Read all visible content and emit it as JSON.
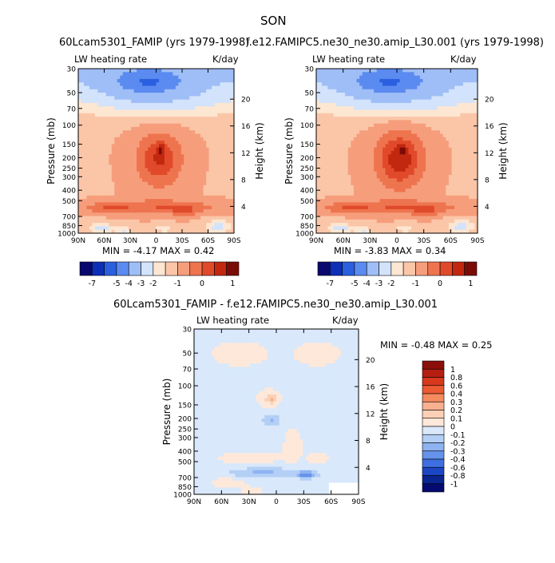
{
  "figure_title": "SON",
  "panels": [
    {
      "title": "60Lcam5301_FAMIP (yrs 1979-1998)",
      "left_label": "LW heating rate",
      "right_label": "K/day",
      "ylabel_left": "Pressure (mb)",
      "ylabel_right": "Height (km)",
      "stats": "MIN =   -4.17   MAX =    0.42"
    },
    {
      "title": "f.e12.FAMIPC5.ne30_ne30.amip_L30.001 (yrs 1979-1998)",
      "left_label": "LW heating rate",
      "right_label": "K/day",
      "ylabel_left": "Pressure (mb)",
      "ylabel_right": "Height (km)",
      "stats": "MIN =   -3.83   MAX =    0.34"
    },
    {
      "title": "60Lcam5301_FAMIP - f.e12.FAMIPC5.ne30_ne30.amip_L30.001",
      "left_label": "LW heating rate",
      "right_label": "K/day",
      "ylabel_left": "Pressure (mb)",
      "ylabel_right": "Height (km)",
      "stats": "MIN =   -0.48   MAX =    0.25"
    }
  ],
  "axes": {
    "x_ticks": [
      "90N",
      "60N",
      "30N",
      "0",
      "30S",
      "60S",
      "90S"
    ],
    "pressure_ticks": [
      "30",
      "50",
      "70",
      "100",
      "150",
      "200",
      "250",
      "300",
      "400",
      "500",
      "700",
      "850",
      "1000"
    ],
    "height_ticks": [
      "20",
      "16",
      "12",
      "8",
      "4"
    ]
  },
  "colorbars": {
    "top_labels": [
      "-7",
      "-5",
      "-4",
      "-3",
      "-2",
      "-1",
      "0",
      "1"
    ],
    "top_colors": [
      "#08086e",
      "#0d2fb8",
      "#2a5fe0",
      "#5b8bf0",
      "#9fbef7",
      "#d2e3fb",
      "#fde6d2",
      "#fbc6a8",
      "#f69e7c",
      "#ee744f",
      "#e04a2a",
      "#c22810",
      "#7a0c07"
    ],
    "diff_labels": [
      "1",
      "0.8",
      "0.6",
      "0.4",
      "0.3",
      "0.2",
      "0.1",
      "0",
      "-0.1",
      "-0.2",
      "-0.3",
      "-0.4",
      "-0.6",
      "-0.8",
      "-1"
    ],
    "diff_colors": [
      "#8a0e0a",
      "#b51e10",
      "#d8381c",
      "#ec5a32",
      "#f58a5e",
      "#f9b08f",
      "#fcd0b6",
      "#fde8da",
      "#d9e8fb",
      "#b4cff6",
      "#8db3f1",
      "#6592ea",
      "#3e6fe0",
      "#1c46c4",
      "#0a2590",
      "#050a70"
    ]
  },
  "chart_data": [
    {
      "type": "heatmap",
      "title": "60Lcam5301_FAMIP (yrs 1979-1998)",
      "variable": "LW heating rate",
      "units": "K/day",
      "x": [
        "90N",
        "60N",
        "30N",
        "0",
        "30S",
        "60S",
        "90S"
      ],
      "xlabel": "",
      "ylabel": "Pressure (mb)",
      "y2label": "Height (km)",
      "ylim": [
        1000,
        30
      ],
      "min": -4.17,
      "max": 0.42
    },
    {
      "type": "heatmap",
      "title": "f.e12.FAMIPC5.ne30_ne30.amip_L30.001 (yrs 1979-1998)",
      "variable": "LW heating rate",
      "units": "K/day",
      "x": [
        "90N",
        "60N",
        "30N",
        "0",
        "30S",
        "60S",
        "90S"
      ],
      "xlabel": "",
      "ylabel": "Pressure (mb)",
      "y2label": "Height (km)",
      "ylim": [
        1000,
        30
      ],
      "min": -3.83,
      "max": 0.34
    },
    {
      "type": "heatmap",
      "title": "60Lcam5301_FAMIP - f.e12.FAMIPC5.ne30_ne30.amip_L30.001",
      "variable": "LW heating rate",
      "units": "K/day",
      "x": [
        "90N",
        "60N",
        "30N",
        "0",
        "30S",
        "60S",
        "90S"
      ],
      "xlabel": "",
      "ylabel": "Pressure (mb)",
      "y2label": "Height (km)",
      "ylim": [
        1000,
        30
      ],
      "min": -0.48,
      "max": 0.25
    }
  ]
}
